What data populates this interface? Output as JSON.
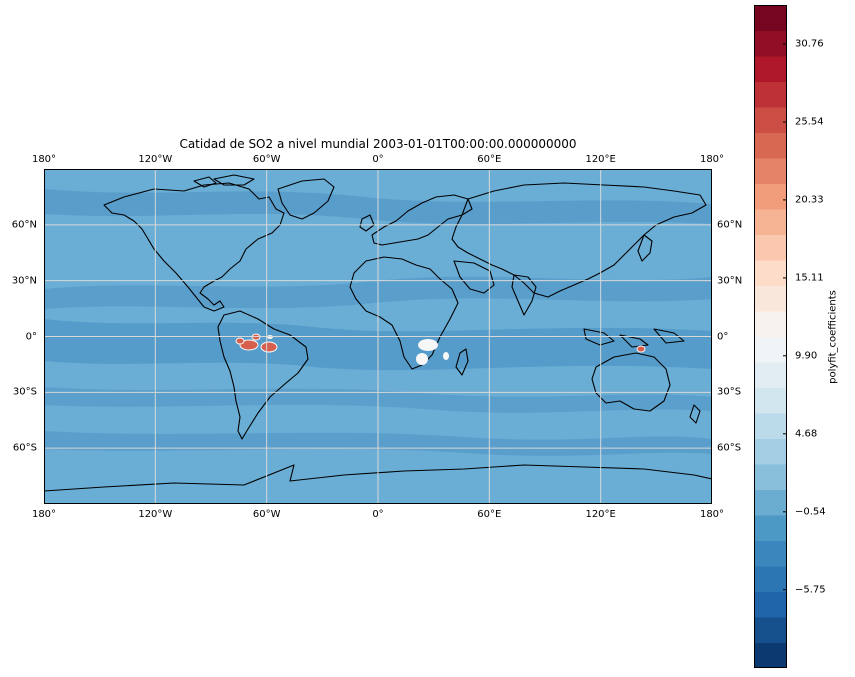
{
  "title": "Catidad de SO2 a nivel mundial 2003-01-01T00:00:00.000000000",
  "lon_ticks": [
    {
      "value": -180,
      "label": "180°"
    },
    {
      "value": -120,
      "label": "120°W"
    },
    {
      "value": -60,
      "label": "60°W"
    },
    {
      "value": 0,
      "label": "0°"
    },
    {
      "value": 60,
      "label": "60°E"
    },
    {
      "value": 120,
      "label": "120°E"
    },
    {
      "value": 180,
      "label": "180°"
    }
  ],
  "lat_ticks": [
    {
      "value": 60,
      "label": "60°N"
    },
    {
      "value": 30,
      "label": "30°N"
    },
    {
      "value": 0,
      "label": "0°"
    },
    {
      "value": -30,
      "label": "30°S"
    },
    {
      "value": -60,
      "label": "60°S"
    }
  ],
  "map_extent": {
    "lon": [
      -180,
      180
    ],
    "lat": [
      -90,
      90
    ]
  },
  "colorbar": {
    "label": "polyfit_coefficients",
    "range": [
      -10.99,
      33.37
    ],
    "levels": 26,
    "colormap": "RdBu_r",
    "ticks": [
      {
        "value": -5.75,
        "label": "−5.75"
      },
      {
        "value": -0.54,
        "label": "−0.54"
      },
      {
        "value": 4.68,
        "label": "4.68"
      },
      {
        "value": 9.9,
        "label": "9.90"
      },
      {
        "value": 15.11,
        "label": "15.11"
      },
      {
        "value": 20.33,
        "label": "20.33"
      },
      {
        "value": 25.54,
        "label": "25.54"
      },
      {
        "value": 30.76,
        "label": "30.76"
      }
    ]
  },
  "colors": {
    "ocean_base": "#6aaed6",
    "ocean_band": "#4a90c2",
    "land_base": "#6aaed6",
    "coastline": "#000000",
    "grid": "#d8d8d8",
    "hotspot": "#d6604d",
    "whitespot": "#f7f7f7"
  }
}
